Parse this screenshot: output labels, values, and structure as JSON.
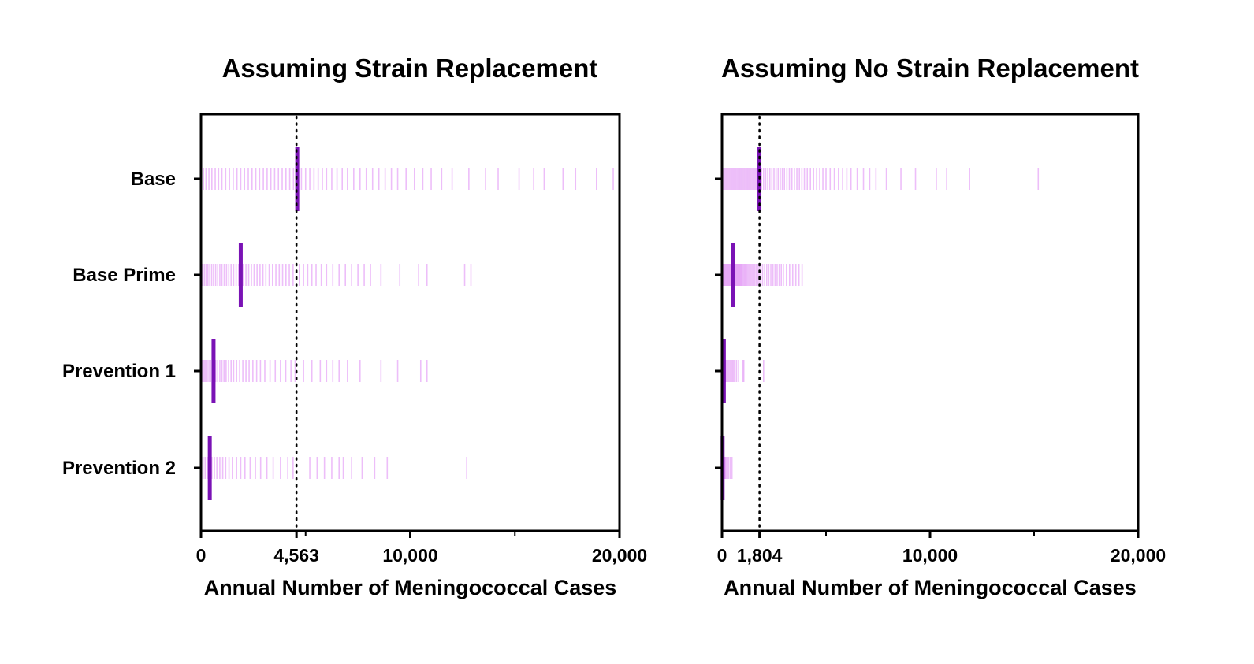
{
  "chart_data": [
    {
      "type": "scatter",
      "title": "Assuming Strain Replacement",
      "xlabel": "Annual Number of Meningococcal Cases",
      "xlim": [
        0,
        20000
      ],
      "xticks": [
        0,
        4563,
        10000,
        20000
      ],
      "xtick_labels": [
        "0",
        "4,563",
        "10,000",
        "20,000"
      ],
      "minor_ticks": [
        5000,
        15000
      ],
      "reference_line": 4563,
      "categories": [
        "Base",
        "Base Prime",
        "Prevention 1",
        "Prevention 2"
      ],
      "series": [
        {
          "category": "Base",
          "median": 4600,
          "values": [
            0,
            120,
            240,
            380,
            520,
            680,
            840,
            1000,
            1180,
            1360,
            1540,
            1720,
            1900,
            2080,
            2260,
            2440,
            2620,
            2800,
            2980,
            3160,
            3340,
            3520,
            3700,
            3880,
            4060,
            4240,
            4420,
            4800,
            5000,
            5200,
            5400,
            5600,
            5800,
            6000,
            6250,
            6500,
            6750,
            7000,
            7300,
            7600,
            7900,
            8200,
            8500,
            8800,
            9100,
            9400,
            9800,
            10200,
            10600,
            11000,
            11500,
            12000,
            12800,
            13600,
            14200,
            15200,
            15900,
            16400,
            17300,
            17900,
            18900,
            19700
          ]
        },
        {
          "category": "Base Prime",
          "median": 1900,
          "values": [
            0,
            80,
            160,
            240,
            330,
            420,
            510,
            600,
            700,
            800,
            900,
            1000,
            1110,
            1220,
            1330,
            1440,
            1560,
            1680,
            1800,
            2020,
            2150,
            2280,
            2410,
            2540,
            2680,
            2820,
            2960,
            3100,
            3260,
            3420,
            3580,
            3740,
            3900,
            4060,
            4220,
            4400,
            4700,
            4900,
            5100,
            5300,
            5500,
            5750,
            6000,
            6300,
            6600,
            6900,
            7200,
            7500,
            7800,
            8100,
            8600,
            9500,
            10400,
            10800,
            12600,
            12900
          ]
        },
        {
          "category": "Prevention 1",
          "median": 600,
          "values": [
            0,
            60,
            120,
            180,
            240,
            300,
            380,
            460,
            540,
            620,
            700,
            800,
            900,
            1000,
            1100,
            1200,
            1320,
            1440,
            1560,
            1700,
            1850,
            2000,
            2150,
            2300,
            2480,
            2660,
            2840,
            3050,
            3300,
            3550,
            3800,
            4050,
            4300,
            4500,
            4900,
            5300,
            5700,
            6000,
            6300,
            6600,
            7000,
            7600,
            8600,
            9400,
            10500,
            10800
          ]
        },
        {
          "category": "Prevention 2",
          "median": 420,
          "values": [
            0,
            100,
            200,
            300,
            400,
            520,
            640,
            760,
            900,
            1040,
            1180,
            1340,
            1500,
            1700,
            1900,
            2100,
            2350,
            2600,
            2850,
            3150,
            3450,
            3800,
            4150,
            4400,
            5200,
            5550,
            5900,
            6250,
            6600,
            6800,
            7200,
            7700,
            8300,
            8900,
            12700
          ]
        }
      ]
    },
    {
      "type": "scatter",
      "title": "Assuming No Strain Replacement",
      "xlabel": "Annual Number of Meningococcal Cases",
      "xlim": [
        0,
        20000
      ],
      "xticks": [
        0,
        1804,
        10000,
        20000
      ],
      "xtick_labels": [
        "0",
        "1,804",
        "10,000",
        "20,000"
      ],
      "minor_ticks": [
        5000,
        15000
      ],
      "reference_line": 1804,
      "categories": [
        "Base",
        "Base Prime",
        "Prevention 1",
        "Prevention 2"
      ],
      "series": [
        {
          "category": "Base",
          "median": 1800,
          "values": [
            0,
            60,
            120,
            180,
            240,
            300,
            360,
            420,
            480,
            540,
            600,
            660,
            720,
            780,
            840,
            900,
            960,
            1020,
            1080,
            1140,
            1200,
            1260,
            1320,
            1380,
            1440,
            1500,
            1560,
            1620,
            1680,
            1740,
            1900,
            2000,
            2100,
            2200,
            2300,
            2400,
            2500,
            2600,
            2700,
            2800,
            2900,
            3000,
            3120,
            3240,
            3360,
            3480,
            3600,
            3720,
            3840,
            3960,
            4100,
            4250,
            4400,
            4550,
            4700,
            4850,
            5000,
            5200,
            5400,
            5600,
            5800,
            6000,
            6200,
            6500,
            6800,
            7100,
            7400,
            7900,
            8600,
            9300,
            10300,
            10800,
            11900,
            15200
          ]
        },
        {
          "category": "Base Prime",
          "median": 520,
          "values": [
            0,
            40,
            80,
            120,
            160,
            200,
            240,
            280,
            320,
            360,
            400,
            440,
            480,
            560,
            600,
            640,
            680,
            720,
            760,
            800,
            840,
            880,
            920,
            960,
            1000,
            1050,
            1100,
            1150,
            1200,
            1260,
            1320,
            1380,
            1440,
            1500,
            1570,
            1640,
            1710,
            1780,
            1860,
            1950,
            2050,
            2150,
            2250,
            2350,
            2450,
            2550,
            2650,
            2750,
            2850,
            2950,
            3100,
            3250,
            3400,
            3550,
            3700,
            3850
          ]
        },
        {
          "category": "Prevention 1",
          "median": 90,
          "values": [
            0,
            40,
            80,
            120,
            160,
            200,
            260,
            320,
            380,
            440,
            500,
            560,
            620,
            700,
            800,
            1000,
            1050,
            2000
          ]
        },
        {
          "category": "Prevention 2",
          "median": 30,
          "values": [
            0,
            40,
            80,
            120,
            160,
            200,
            260,
            320,
            400,
            480
          ]
        }
      ]
    }
  ]
}
